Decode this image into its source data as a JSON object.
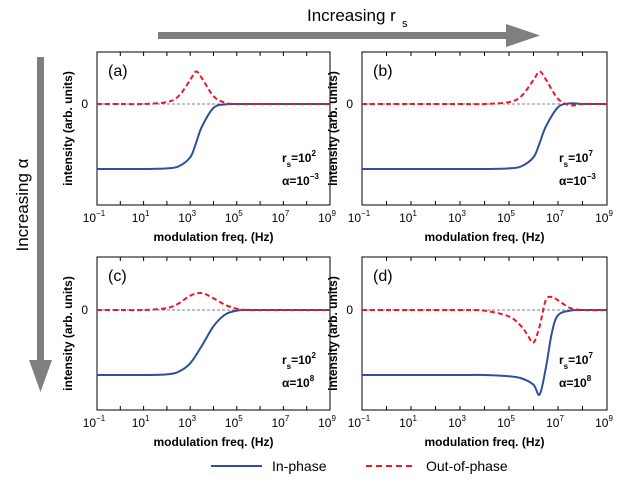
{
  "figure": {
    "top_arrow_label": "Increasing r",
    "top_arrow_sub": "s",
    "left_arrow_label": "Increasing α",
    "arrow_color": "#7f7f7f"
  },
  "legend": {
    "in_phase": "In-phase",
    "out_of_phase": "Out-of-phase",
    "in_phase_color": "#2e4f9e",
    "out_of_phase_color": "#e8192c"
  },
  "chart_data": [
    {
      "type": "line",
      "panel": "(a)",
      "xlabel": "modulation freq. (Hz)",
      "ylabel": "intensity (arb. units)",
      "xscale": "log",
      "xlim": [
        -1,
        9
      ],
      "x_ticks": [
        "10^-1",
        "10^1",
        "10^3",
        "10^5",
        "10^7",
        "10^9"
      ],
      "y_ticks": [
        "0"
      ],
      "ylim": [
        -1.25,
        0.6
      ],
      "params": {
        "rs": "10^2",
        "alpha": "10^-3"
      },
      "series": [
        {
          "name": "In-phase",
          "log10_x": [
            -1,
            0,
            1,
            2,
            2.5,
            3,
            3.25,
            3.5,
            4,
            4.5,
            5,
            6,
            7,
            8,
            9
          ],
          "y": [
            -1.0,
            -1.0,
            -1.0,
            -0.99,
            -0.96,
            -0.82,
            -0.6,
            -0.35,
            -0.06,
            -0.005,
            0,
            0,
            0,
            0,
            0
          ]
        },
        {
          "name": "Out-of-phase",
          "log10_x": [
            -1,
            0,
            1,
            2,
            2.5,
            3,
            3.25,
            3.5,
            4,
            4.5,
            5,
            6,
            7,
            8,
            9
          ],
          "y": [
            0,
            0,
            0,
            0.03,
            0.12,
            0.37,
            0.5,
            0.4,
            0.12,
            0.02,
            0,
            0,
            0,
            0,
            0
          ]
        }
      ]
    },
    {
      "type": "line",
      "panel": "(b)",
      "xlabel": "modulation freq. (Hz)",
      "ylabel": "intensity (arb. units)",
      "xscale": "log",
      "xlim": [
        -1,
        9
      ],
      "x_ticks": [
        "10^-1",
        "10^1",
        "10^3",
        "10^5",
        "10^7",
        "10^9"
      ],
      "y_ticks": [
        "0"
      ],
      "ylim": [
        -1.25,
        0.6
      ],
      "params": {
        "rs": "10^7",
        "alpha": "10^-3"
      },
      "series": [
        {
          "name": "In-phase",
          "log10_x": [
            -1,
            1,
            3,
            4,
            5,
            5.5,
            6,
            6.25,
            6.5,
            7,
            7.5,
            8,
            9
          ],
          "y": [
            -1.0,
            -1.0,
            -1.0,
            -1.0,
            -0.99,
            -0.96,
            -0.82,
            -0.6,
            -0.35,
            -0.05,
            0.01,
            0,
            0
          ]
        },
        {
          "name": "Out-of-phase",
          "log10_x": [
            -1,
            1,
            3,
            4,
            5,
            5.5,
            6,
            6.25,
            6.5,
            7,
            7.5,
            8,
            9
          ],
          "y": [
            0,
            0,
            0,
            0,
            0.03,
            0.12,
            0.37,
            0.5,
            0.38,
            0.08,
            -0.02,
            0,
            0
          ]
        }
      ]
    },
    {
      "type": "line",
      "panel": "(c)",
      "xlabel": "modulation freq. (Hz)",
      "ylabel": "intensity (arb. units)",
      "xscale": "log",
      "xlim": [
        -1,
        9
      ],
      "x_ticks": [
        "10^-1",
        "10^1",
        "10^3",
        "10^5",
        "10^7",
        "10^9"
      ],
      "y_ticks": [
        "0"
      ],
      "ylim": [
        -1.25,
        0.6
      ],
      "params": {
        "rs": "10^2",
        "alpha": "10^8"
      },
      "series": [
        {
          "name": "In-phase",
          "log10_x": [
            -1,
            0,
            1,
            2,
            2.5,
            3,
            3.5,
            4,
            4.5,
            5,
            5.5,
            6,
            7,
            8,
            9
          ],
          "y": [
            -1.0,
            -1.0,
            -1.0,
            -0.99,
            -0.95,
            -0.82,
            -0.55,
            -0.25,
            -0.07,
            -0.01,
            0,
            0,
            0,
            0,
            0
          ]
        },
        {
          "name": "Out-of-phase",
          "log10_x": [
            -1,
            0,
            1,
            2,
            2.5,
            3,
            3.5,
            4,
            4.5,
            5,
            5.5,
            6,
            7,
            8,
            9
          ],
          "y": [
            0,
            0,
            0,
            0.03,
            0.1,
            0.22,
            0.26,
            0.18,
            0.08,
            0.02,
            0,
            0,
            0,
            0,
            0
          ]
        }
      ]
    },
    {
      "type": "line",
      "panel": "(d)",
      "xlabel": "modulation freq. (Hz)",
      "ylabel": "intensity (arb. units)",
      "xscale": "log",
      "xlim": [
        -1,
        9
      ],
      "x_ticks": [
        "10^-1",
        "10^1",
        "10^3",
        "10^5",
        "10^7",
        "10^9"
      ],
      "y_ticks": [
        "0"
      ],
      "ylim": [
        -1.35,
        0.6
      ],
      "params": {
        "rs": "10^7",
        "alpha": "10^8"
      },
      "series": [
        {
          "name": "In-phase",
          "log10_x": [
            -1,
            1,
            3,
            4,
            5,
            5.5,
            6,
            6.25,
            6.5,
            6.75,
            7,
            7.5,
            8,
            9
          ],
          "y": [
            -1.0,
            -1.0,
            -1.0,
            -1.0,
            -1.02,
            -1.05,
            -1.15,
            -1.3,
            -0.9,
            -0.35,
            -0.08,
            -0.01,
            0,
            0
          ]
        },
        {
          "name": "Out-of-phase",
          "log10_x": [
            -1,
            1,
            3,
            4,
            5,
            5.5,
            5.75,
            6,
            6.25,
            6.5,
            6.75,
            7,
            7.5,
            8,
            9
          ],
          "y": [
            0,
            0,
            0,
            -0.01,
            -0.1,
            -0.25,
            -0.38,
            -0.5,
            -0.25,
            0.15,
            0.2,
            0.15,
            0.03,
            0,
            0
          ]
        }
      ]
    }
  ]
}
